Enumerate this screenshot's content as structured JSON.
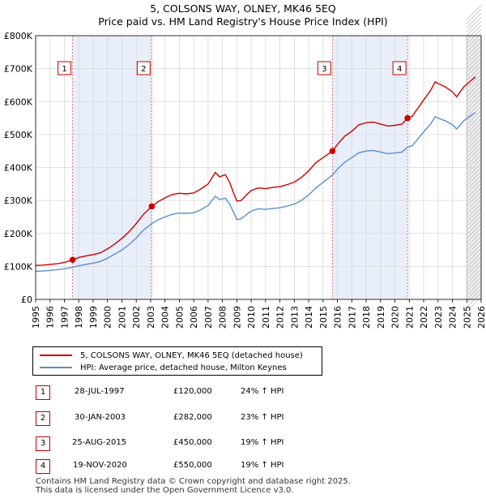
{
  "chart_data": {
    "type": "line",
    "title": "5, COLSONS WAY, OLNEY, MK46 5EQ",
    "subtitle": "Price paid vs. HM Land Registry's House Price Index (HPI)",
    "xlim": [
      1995,
      2026
    ],
    "ylim": [
      0,
      800000
    ],
    "y_ticks": [
      {
        "value": 0,
        "label": "£0"
      },
      {
        "value": 100000,
        "label": "£100K"
      },
      {
        "value": 200000,
        "label": "£200K"
      },
      {
        "value": 300000,
        "label": "£300K"
      },
      {
        "value": 400000,
        "label": "£400K"
      },
      {
        "value": 500000,
        "label": "£500K"
      },
      {
        "value": 600000,
        "label": "£600K"
      },
      {
        "value": 700000,
        "label": "£700K"
      },
      {
        "value": 800000,
        "label": "£800K"
      }
    ],
    "x_ticks": [
      "1995",
      "1996",
      "1997",
      "1998",
      "1999",
      "2000",
      "2001",
      "2002",
      "2003",
      "2004",
      "2005",
      "2006",
      "2007",
      "2008",
      "2009",
      "2010",
      "2011",
      "2012",
      "2013",
      "2014",
      "2015",
      "2016",
      "2017",
      "2018",
      "2019",
      "2020",
      "2021",
      "2022",
      "2023",
      "2024",
      "2025",
      "2026"
    ],
    "shaded_periods": [
      [
        1997.57,
        2003.08
      ],
      [
        2015.65,
        2020.88
      ]
    ],
    "forecast_start": 2025.0,
    "series": [
      {
        "name": "5, COLSONS WAY, OLNEY, MK46 5EQ (detached house)",
        "color": "#cc0000",
        "points": [
          [
            1995.0,
            103000
          ],
          [
            1995.5,
            104000
          ],
          [
            1996.0,
            106000
          ],
          [
            1996.5,
            108000
          ],
          [
            1997.0,
            112000
          ],
          [
            1997.57,
            120000
          ],
          [
            1998.0,
            127000
          ],
          [
            1998.5,
            132000
          ],
          [
            1999.0,
            136000
          ],
          [
            1999.5,
            141000
          ],
          [
            2000.0,
            153000
          ],
          [
            2000.5,
            168000
          ],
          [
            2001.0,
            185000
          ],
          [
            2001.5,
            205000
          ],
          [
            2002.0,
            230000
          ],
          [
            2002.5,
            258000
          ],
          [
            2003.08,
            282000
          ],
          [
            2003.5,
            296000
          ],
          [
            2004.0,
            308000
          ],
          [
            2004.5,
            318000
          ],
          [
            2005.0,
            322000
          ],
          [
            2005.5,
            320000
          ],
          [
            2006.0,
            323000
          ],
          [
            2006.5,
            335000
          ],
          [
            2007.0,
            350000
          ],
          [
            2007.5,
            385000
          ],
          [
            2007.8,
            372000
          ],
          [
            2008.2,
            378000
          ],
          [
            2008.5,
            355000
          ],
          [
            2008.8,
            320000
          ],
          [
            2009.0,
            298000
          ],
          [
            2009.3,
            300000
          ],
          [
            2009.7,
            318000
          ],
          [
            2010.0,
            330000
          ],
          [
            2010.5,
            338000
          ],
          [
            2011.0,
            336000
          ],
          [
            2011.5,
            340000
          ],
          [
            2012.0,
            342000
          ],
          [
            2012.5,
            348000
          ],
          [
            2013.0,
            356000
          ],
          [
            2013.5,
            370000
          ],
          [
            2014.0,
            390000
          ],
          [
            2014.5,
            415000
          ],
          [
            2015.0,
            430000
          ],
          [
            2015.65,
            450000
          ],
          [
            2016.0,
            470000
          ],
          [
            2016.5,
            495000
          ],
          [
            2017.0,
            510000
          ],
          [
            2017.5,
            530000
          ],
          [
            2018.0,
            536000
          ],
          [
            2018.5,
            538000
          ],
          [
            2019.0,
            532000
          ],
          [
            2019.5,
            526000
          ],
          [
            2020.0,
            528000
          ],
          [
            2020.5,
            532000
          ],
          [
            2020.88,
            550000
          ],
          [
            2021.2,
            555000
          ],
          [
            2021.6,
            580000
          ],
          [
            2022.0,
            605000
          ],
          [
            2022.5,
            635000
          ],
          [
            2022.8,
            660000
          ],
          [
            2023.0,
            655000
          ],
          [
            2023.5,
            645000
          ],
          [
            2024.0,
            630000
          ],
          [
            2024.3,
            615000
          ],
          [
            2024.8,
            645000
          ],
          [
            2025.2,
            660000
          ],
          [
            2025.6,
            675000
          ]
        ]
      },
      {
        "name": "HPI: Average price, detached house, Milton Keynes",
        "color": "#5b8fcf",
        "points": [
          [
            1995.0,
            85000
          ],
          [
            1995.5,
            86000
          ],
          [
            1996.0,
            88000
          ],
          [
            1996.5,
            90000
          ],
          [
            1997.0,
            93000
          ],
          [
            1997.57,
            97000
          ],
          [
            1998.0,
            102000
          ],
          [
            1998.5,
            106000
          ],
          [
            1999.0,
            110000
          ],
          [
            1999.5,
            115000
          ],
          [
            2000.0,
            125000
          ],
          [
            2000.5,
            137000
          ],
          [
            2001.0,
            150000
          ],
          [
            2001.5,
            166000
          ],
          [
            2002.0,
            186000
          ],
          [
            2002.5,
            210000
          ],
          [
            2003.08,
            230000
          ],
          [
            2003.5,
            241000
          ],
          [
            2004.0,
            250000
          ],
          [
            2004.5,
            258000
          ],
          [
            2005.0,
            262000
          ],
          [
            2005.5,
            261000
          ],
          [
            2006.0,
            263000
          ],
          [
            2006.5,
            272000
          ],
          [
            2007.0,
            285000
          ],
          [
            2007.5,
            313000
          ],
          [
            2007.8,
            303000
          ],
          [
            2008.2,
            307000
          ],
          [
            2008.5,
            289000
          ],
          [
            2008.8,
            262000
          ],
          [
            2009.0,
            242000
          ],
          [
            2009.3,
            245000
          ],
          [
            2009.7,
            258000
          ],
          [
            2010.0,
            268000
          ],
          [
            2010.5,
            275000
          ],
          [
            2011.0,
            273000
          ],
          [
            2011.5,
            276000
          ],
          [
            2012.0,
            278000
          ],
          [
            2012.5,
            283000
          ],
          [
            2013.0,
            289000
          ],
          [
            2013.5,
            300000
          ],
          [
            2014.0,
            317000
          ],
          [
            2014.5,
            338000
          ],
          [
            2015.0,
            355000
          ],
          [
            2015.65,
            377000
          ],
          [
            2016.0,
            395000
          ],
          [
            2016.5,
            416000
          ],
          [
            2017.0,
            430000
          ],
          [
            2017.5,
            445000
          ],
          [
            2018.0,
            450000
          ],
          [
            2018.5,
            452000
          ],
          [
            2019.0,
            447000
          ],
          [
            2019.5,
            442000
          ],
          [
            2020.0,
            444000
          ],
          [
            2020.5,
            447000
          ],
          [
            2020.88,
            462000
          ],
          [
            2021.2,
            466000
          ],
          [
            2021.6,
            487000
          ],
          [
            2022.0,
            508000
          ],
          [
            2022.5,
            533000
          ],
          [
            2022.8,
            554000
          ],
          [
            2023.0,
            550000
          ],
          [
            2023.5,
            542000
          ],
          [
            2024.0,
            530000
          ],
          [
            2024.3,
            517000
          ],
          [
            2024.8,
            542000
          ],
          [
            2025.2,
            555000
          ],
          [
            2025.6,
            567000
          ]
        ]
      }
    ],
    "transactions": [
      {
        "num": "1",
        "year": 1997.57,
        "price": 120000,
        "date": "28-JUL-1997",
        "price_label": "£120,000",
        "hpi": "24% ↑ HPI"
      },
      {
        "num": "2",
        "year": 2003.08,
        "price": 282000,
        "date": "30-JAN-2003",
        "price_label": "£282,000",
        "hpi": "23% ↑ HPI"
      },
      {
        "num": "3",
        "year": 2015.65,
        "price": 450000,
        "date": "25-AUG-2015",
        "price_label": "£450,000",
        "hpi": "19% ↑ HPI"
      },
      {
        "num": "4",
        "year": 2020.88,
        "price": 550000,
        "date": "19-NOV-2020",
        "price_label": "£550,000",
        "hpi": "19% ↑ HPI"
      }
    ]
  },
  "legend": {
    "property_label": "5, COLSONS WAY, OLNEY, MK46 5EQ (detached house)",
    "hpi_label": "HPI: Average price, detached house, Milton Keynes"
  },
  "footer": {
    "line1": "Contains HM Land Registry data © Crown copyright and database right 2025.",
    "line2": "This data is licensed under the Open Government Licence v3.0."
  }
}
